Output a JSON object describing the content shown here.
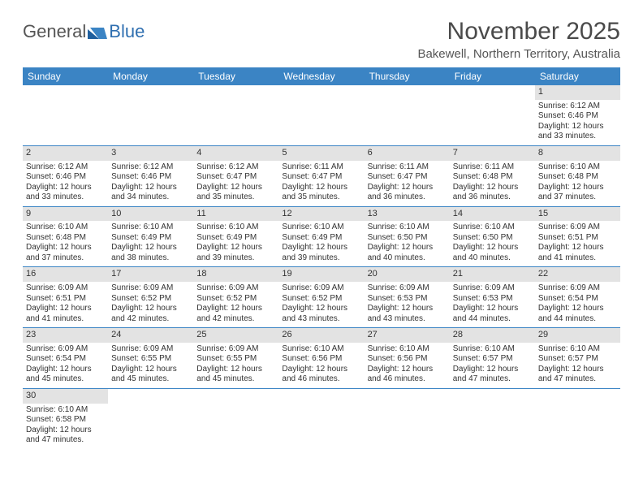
{
  "brand": {
    "part1": "General",
    "part2": "Blue"
  },
  "title": "November 2025",
  "location": "Bakewell, Northern Territory, Australia",
  "colors": {
    "header_bg": "#3b84c4",
    "header_text": "#ffffff",
    "daynum_bg": "#e3e3e3",
    "rule": "#3b84c4",
    "body_text": "#333333",
    "logo_accent": "#2f6fb0"
  },
  "weekdays": [
    "Sunday",
    "Monday",
    "Tuesday",
    "Wednesday",
    "Thursday",
    "Friday",
    "Saturday"
  ],
  "layout": {
    "first_weekday_index": 6,
    "days_in_month": 30
  },
  "days": [
    {
      "n": 1,
      "sunrise": "6:12 AM",
      "sunset": "6:46 PM",
      "daylight": "12 hours and 33 minutes."
    },
    {
      "n": 2,
      "sunrise": "6:12 AM",
      "sunset": "6:46 PM",
      "daylight": "12 hours and 33 minutes."
    },
    {
      "n": 3,
      "sunrise": "6:12 AM",
      "sunset": "6:46 PM",
      "daylight": "12 hours and 34 minutes."
    },
    {
      "n": 4,
      "sunrise": "6:12 AM",
      "sunset": "6:47 PM",
      "daylight": "12 hours and 35 minutes."
    },
    {
      "n": 5,
      "sunrise": "6:11 AM",
      "sunset": "6:47 PM",
      "daylight": "12 hours and 35 minutes."
    },
    {
      "n": 6,
      "sunrise": "6:11 AM",
      "sunset": "6:47 PM",
      "daylight": "12 hours and 36 minutes."
    },
    {
      "n": 7,
      "sunrise": "6:11 AM",
      "sunset": "6:48 PM",
      "daylight": "12 hours and 36 minutes."
    },
    {
      "n": 8,
      "sunrise": "6:10 AM",
      "sunset": "6:48 PM",
      "daylight": "12 hours and 37 minutes."
    },
    {
      "n": 9,
      "sunrise": "6:10 AM",
      "sunset": "6:48 PM",
      "daylight": "12 hours and 37 minutes."
    },
    {
      "n": 10,
      "sunrise": "6:10 AM",
      "sunset": "6:49 PM",
      "daylight": "12 hours and 38 minutes."
    },
    {
      "n": 11,
      "sunrise": "6:10 AM",
      "sunset": "6:49 PM",
      "daylight": "12 hours and 39 minutes."
    },
    {
      "n": 12,
      "sunrise": "6:10 AM",
      "sunset": "6:49 PM",
      "daylight": "12 hours and 39 minutes."
    },
    {
      "n": 13,
      "sunrise": "6:10 AM",
      "sunset": "6:50 PM",
      "daylight": "12 hours and 40 minutes."
    },
    {
      "n": 14,
      "sunrise": "6:10 AM",
      "sunset": "6:50 PM",
      "daylight": "12 hours and 40 minutes."
    },
    {
      "n": 15,
      "sunrise": "6:09 AM",
      "sunset": "6:51 PM",
      "daylight": "12 hours and 41 minutes."
    },
    {
      "n": 16,
      "sunrise": "6:09 AM",
      "sunset": "6:51 PM",
      "daylight": "12 hours and 41 minutes."
    },
    {
      "n": 17,
      "sunrise": "6:09 AM",
      "sunset": "6:52 PM",
      "daylight": "12 hours and 42 minutes."
    },
    {
      "n": 18,
      "sunrise": "6:09 AM",
      "sunset": "6:52 PM",
      "daylight": "12 hours and 42 minutes."
    },
    {
      "n": 19,
      "sunrise": "6:09 AM",
      "sunset": "6:52 PM",
      "daylight": "12 hours and 43 minutes."
    },
    {
      "n": 20,
      "sunrise": "6:09 AM",
      "sunset": "6:53 PM",
      "daylight": "12 hours and 43 minutes."
    },
    {
      "n": 21,
      "sunrise": "6:09 AM",
      "sunset": "6:53 PM",
      "daylight": "12 hours and 44 minutes."
    },
    {
      "n": 22,
      "sunrise": "6:09 AM",
      "sunset": "6:54 PM",
      "daylight": "12 hours and 44 minutes."
    },
    {
      "n": 23,
      "sunrise": "6:09 AM",
      "sunset": "6:54 PM",
      "daylight": "12 hours and 45 minutes."
    },
    {
      "n": 24,
      "sunrise": "6:09 AM",
      "sunset": "6:55 PM",
      "daylight": "12 hours and 45 minutes."
    },
    {
      "n": 25,
      "sunrise": "6:09 AM",
      "sunset": "6:55 PM",
      "daylight": "12 hours and 45 minutes."
    },
    {
      "n": 26,
      "sunrise": "6:10 AM",
      "sunset": "6:56 PM",
      "daylight": "12 hours and 46 minutes."
    },
    {
      "n": 27,
      "sunrise": "6:10 AM",
      "sunset": "6:56 PM",
      "daylight": "12 hours and 46 minutes."
    },
    {
      "n": 28,
      "sunrise": "6:10 AM",
      "sunset": "6:57 PM",
      "daylight": "12 hours and 47 minutes."
    },
    {
      "n": 29,
      "sunrise": "6:10 AM",
      "sunset": "6:57 PM",
      "daylight": "12 hours and 47 minutes."
    },
    {
      "n": 30,
      "sunrise": "6:10 AM",
      "sunset": "6:58 PM",
      "daylight": "12 hours and 47 minutes."
    }
  ],
  "labels": {
    "sunrise": "Sunrise:",
    "sunset": "Sunset:",
    "daylight": "Daylight:"
  }
}
